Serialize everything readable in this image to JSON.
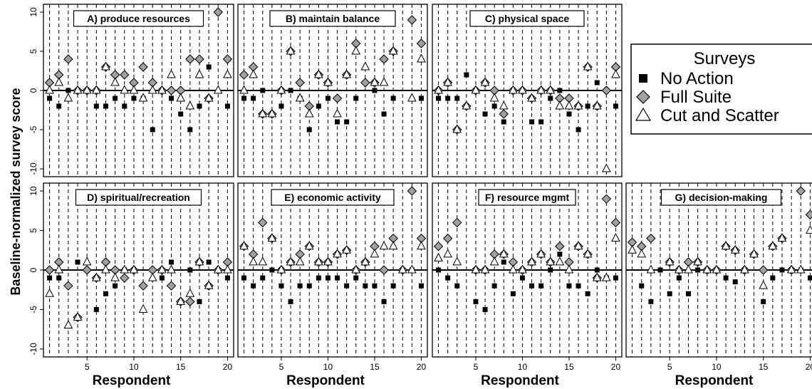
{
  "chart_data": {
    "type": "scatter",
    "ylabel": "Baseline-normalized survey score",
    "xlabel": "Respondent",
    "xlim": [
      0.5,
      20.5
    ],
    "ylim": [
      -11,
      11
    ],
    "x_ticks": [
      5,
      10,
      15,
      20
    ],
    "y_ticks": [
      -10,
      -5,
      0,
      5,
      10
    ],
    "vertical_dashed_gridlines": true,
    "zero_line": true,
    "legend": {
      "title": "Surveys",
      "position": "right",
      "entries": [
        {
          "name": "No Action",
          "marker": "square",
          "color": "#000000"
        },
        {
          "name": "Full Suite",
          "marker": "diamond",
          "color": "#a0a0a0"
        },
        {
          "name": "Cut and Scatter",
          "marker": "triangle",
          "color": "#ffffff"
        }
      ]
    },
    "panels": [
      {
        "title": "A) produce resources",
        "x": [
          1,
          2,
          3,
          4,
          5,
          6,
          7,
          8,
          9,
          10,
          11,
          12,
          13,
          14,
          15,
          16,
          17,
          18,
          19,
          20
        ],
        "no_action": [
          -1,
          -2,
          0,
          0,
          0,
          -2,
          -2,
          -1,
          -2,
          -1,
          -1,
          -5,
          0,
          -1,
          -3,
          -5,
          -2,
          3,
          null,
          -2
        ],
        "full_suite": [
          1,
          2,
          4,
          0,
          0,
          0,
          3,
          2,
          2,
          1,
          3,
          1,
          0,
          0,
          0,
          4,
          4,
          -1,
          10,
          4
        ],
        "cut_and_scatter": [
          0,
          1,
          -1,
          0,
          0,
          0,
          3,
          1,
          0,
          0,
          -1,
          0,
          0,
          2,
          -1,
          -2,
          2,
          -1,
          0,
          2
        ]
      },
      {
        "title": "B) maintain balance",
        "x": [
          1,
          2,
          3,
          4,
          5,
          6,
          7,
          8,
          9,
          10,
          11,
          12,
          13,
          14,
          15,
          16,
          17,
          18,
          19,
          20
        ],
        "no_action": [
          -1,
          -1,
          0,
          null,
          -2,
          0,
          -1,
          -5,
          -2,
          -1,
          -4,
          -4,
          -1,
          null,
          0,
          -3,
          -1,
          null,
          null,
          -1
        ],
        "full_suite": [
          2,
          3,
          -3,
          -3,
          0,
          5,
          1,
          -2,
          2,
          1,
          -1,
          2,
          6,
          1,
          1,
          4,
          5,
          null,
          9,
          6
        ],
        "cut_and_scatter": [
          0,
          2,
          -3,
          -3,
          0,
          5,
          -1,
          -3,
          2,
          1,
          -3,
          2,
          5,
          3,
          1,
          1,
          5,
          null,
          -1,
          4
        ]
      },
      {
        "title": "C) physical space",
        "x": [
          1,
          2,
          3,
          4,
          5,
          6,
          7,
          8,
          9,
          10,
          11,
          12,
          13,
          14,
          15,
          16,
          17,
          18,
          19,
          20
        ],
        "no_action": [
          -1,
          -1,
          -1,
          2,
          0,
          -3,
          -2,
          -4,
          0,
          0,
          -4,
          -4,
          -1,
          0,
          -3,
          -5,
          -2,
          1,
          null,
          -2
        ],
        "full_suite": [
          0,
          1,
          -5,
          -2,
          0,
          1,
          0,
          -3,
          0,
          0,
          -1,
          0,
          0,
          -1,
          -1,
          -2,
          3,
          -2,
          0,
          3
        ],
        "cut_and_scatter": [
          0,
          1,
          -5,
          -2,
          0,
          1,
          -1,
          -2,
          0,
          0,
          -1,
          0,
          0,
          -2,
          -2,
          -2,
          3,
          -2,
          -10,
          2
        ]
      },
      {
        "title": "D) spiritual/recreation",
        "x": [
          1,
          2,
          3,
          4,
          5,
          6,
          7,
          8,
          9,
          10,
          11,
          12,
          13,
          14,
          15,
          16,
          17,
          18,
          19,
          20
        ],
        "no_action": [
          -1,
          -1,
          null,
          1,
          0,
          -5,
          -3,
          -2,
          0,
          0,
          -2,
          0,
          -1,
          1,
          -4,
          0,
          -4,
          1,
          null,
          -1
        ],
        "full_suite": [
          0,
          1,
          -2,
          -6,
          0,
          -1,
          1,
          0,
          -1,
          0,
          -2,
          0,
          0,
          -2,
          -4,
          -4,
          1,
          -2,
          0,
          1
        ],
        "cut_and_scatter": [
          -3,
          0,
          -7,
          -6,
          1,
          -1,
          0,
          -1,
          0,
          0,
          -5,
          -1,
          0,
          0,
          -4,
          -3,
          1,
          -2,
          0,
          0
        ]
      },
      {
        "title": "E) economic activity",
        "x": [
          1,
          2,
          3,
          4,
          5,
          6,
          7,
          8,
          9,
          10,
          11,
          12,
          13,
          14,
          15,
          16,
          17,
          18,
          19,
          20
        ],
        "no_action": [
          -1,
          -2,
          -1,
          0,
          -2,
          -4,
          -2,
          -2,
          -1,
          -1,
          -1,
          -2,
          -1,
          -2,
          -2,
          -4,
          -2,
          0,
          0,
          -2
        ],
        "full_suite": [
          3,
          2,
          6,
          4,
          0,
          1,
          2,
          3,
          1,
          1,
          2,
          2.5,
          0,
          1,
          3,
          0,
          4,
          0,
          10,
          4
        ],
        "cut_and_scatter": [
          3,
          1,
          1,
          4,
          0,
          1,
          1,
          3,
          1,
          1,
          2,
          2.5,
          0,
          1,
          2,
          3,
          3,
          0,
          0,
          3
        ]
      },
      {
        "title": "F) resource mgmt",
        "x": [
          1,
          2,
          3,
          4,
          5,
          6,
          7,
          8,
          9,
          10,
          11,
          12,
          13,
          14,
          15,
          16,
          17,
          18,
          19,
          20
        ],
        "no_action": [
          0,
          -1,
          -2,
          null,
          -4,
          -5,
          -2,
          1,
          -3,
          -1,
          -2,
          -2,
          0,
          2,
          -2,
          -2,
          -3,
          0,
          -1,
          -1
        ],
        "full_suite": [
          3,
          4,
          6,
          null,
          0,
          0,
          2,
          2,
          1,
          0,
          1,
          2,
          1,
          3,
          1,
          3,
          2,
          -1,
          9,
          6
        ],
        "cut_and_scatter": [
          1.5,
          2,
          1,
          null,
          0,
          0,
          1,
          2,
          0,
          0,
          1,
          2,
          1,
          1,
          0,
          3,
          2,
          -1,
          -1,
          4
        ]
      },
      {
        "title": "G) decision-making",
        "x": [
          1,
          2,
          3,
          4,
          5,
          6,
          7,
          8,
          9,
          10,
          11,
          12,
          13,
          14,
          15,
          16,
          17,
          18,
          19,
          20
        ],
        "no_action": [
          null,
          -2,
          -4,
          0,
          -3,
          -1,
          -3,
          0,
          0,
          0,
          -1,
          -1.5,
          0,
          null,
          -4,
          -1,
          0,
          0,
          0,
          -1
        ],
        "full_suite": [
          3.5,
          3,
          4,
          null,
          1,
          0,
          1,
          1,
          0,
          0,
          3,
          2.5,
          0,
          2,
          0,
          3,
          4,
          0,
          10,
          7
        ],
        "cut_and_scatter": [
          2.5,
          2,
          0,
          null,
          1,
          0,
          0,
          1,
          0,
          0,
          3,
          2.5,
          0,
          2,
          -2,
          3,
          4,
          0,
          0,
          5
        ]
      }
    ]
  }
}
